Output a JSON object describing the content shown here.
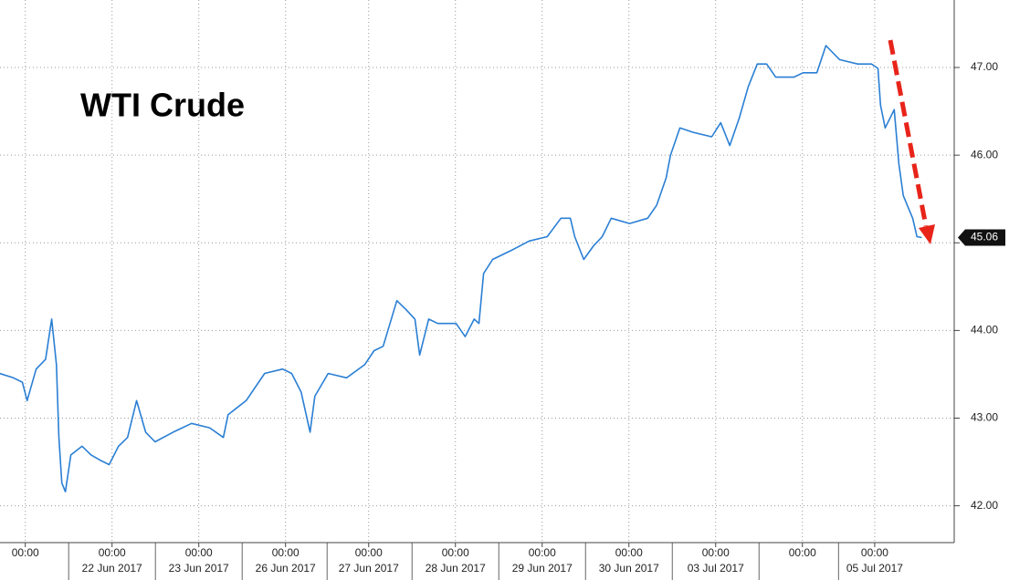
{
  "chart_data": {
    "type": "line",
    "title": "WTI Crude",
    "grid": true,
    "xlim": [
      -7,
      257
    ],
    "ylim": [
      41.58,
      47.77
    ],
    "yticks": [
      {
        "value": 42,
        "label": "42.00"
      },
      {
        "value": 43,
        "label": "43.00"
      },
      {
        "value": 44,
        "label": "44.00"
      },
      {
        "value": 45,
        "label": "45.00"
      },
      {
        "value": 46,
        "label": "46.00"
      },
      {
        "value": 47,
        "label": "47.00"
      }
    ],
    "xticks": [
      {
        "value": 0,
        "label": "00:00"
      },
      {
        "value": 24,
        "label": "00:00"
      },
      {
        "value": 48,
        "label": "00:00"
      },
      {
        "value": 72,
        "label": "00:00"
      },
      {
        "value": 95,
        "label": "00:00"
      },
      {
        "value": 119,
        "label": "00:00"
      },
      {
        "value": 143,
        "label": "00:00"
      },
      {
        "value": 167,
        "label": "00:00"
      },
      {
        "value": 191,
        "label": "00:00"
      },
      {
        "value": 215,
        "label": "00:00"
      },
      {
        "value": 235,
        "label": "00:00"
      }
    ],
    "xdates": [
      {
        "value": 24,
        "label": "22 Jun 2017"
      },
      {
        "value": 48,
        "label": "23 Jun 2017"
      },
      {
        "value": 72,
        "label": "26 Jun 2017"
      },
      {
        "value": 95,
        "label": "27 Jun 2017"
      },
      {
        "value": 119,
        "label": "28 Jun 2017"
      },
      {
        "value": 143,
        "label": "29 Jun 2017"
      },
      {
        "value": 167,
        "label": "30 Jun 2017"
      },
      {
        "value": 191,
        "label": "03 Jul 2017"
      },
      {
        "value": 235,
        "label": "05 Jul 2017"
      }
    ],
    "series": [
      {
        "color": "#2a7fd4",
        "x": [
          -7.1,
          -3.3,
          -0.8,
          0.5,
          3.0,
          5.6,
          7.3,
          8.6,
          9.3,
          10.1,
          11.1,
          12.6,
          15.7,
          18.2,
          20.7,
          23.2,
          25.8,
          28.3,
          30.8,
          33.3,
          35.9,
          40.9,
          46.0,
          51.0,
          54.8,
          56.1,
          61.1,
          66.2,
          71.2,
          73.7,
          76.3,
          78.8,
          80.1,
          83.8,
          88.9,
          93.9,
          96.5,
          99.0,
          102.8,
          105.3,
          107.8,
          109.1,
          111.6,
          114.1,
          119.2,
          121.7,
          124.2,
          125.5,
          126.8,
          129.3,
          134.3,
          139.4,
          144.4,
          148.2,
          150.8,
          152.0,
          154.5,
          157.1,
          159.6,
          162.1,
          167.2,
          172.2,
          174.7,
          177.3,
          178.5,
          181.1,
          184.8,
          189.9,
          192.4,
          194.9,
          197.5,
          200.0,
          202.5,
          205.1,
          207.6,
          212.6,
          215.2,
          219.0,
          221.5,
          225.3,
          230.3,
          234.1,
          235.9,
          236.6,
          237.9,
          240.4,
          241.7,
          242.9,
          245.5,
          246.7,
          248.0
        ],
        "values": [
          43.51,
          43.46,
          43.41,
          43.2,
          43.56,
          43.67,
          44.13,
          43.61,
          42.78,
          42.26,
          42.16,
          42.58,
          42.68,
          42.58,
          42.52,
          42.47,
          42.68,
          42.78,
          43.2,
          42.84,
          42.73,
          42.84,
          42.94,
          42.89,
          42.78,
          43.04,
          43.2,
          43.51,
          43.56,
          43.51,
          43.3,
          42.84,
          43.25,
          43.51,
          43.46,
          43.61,
          43.77,
          43.82,
          44.34,
          44.24,
          44.13,
          43.72,
          44.13,
          44.08,
          44.08,
          43.93,
          44.13,
          44.08,
          44.65,
          44.81,
          44.91,
          45.02,
          45.07,
          45.28,
          45.28,
          45.07,
          44.81,
          44.96,
          45.07,
          45.28,
          45.22,
          45.28,
          45.43,
          45.74,
          46.0,
          46.31,
          46.26,
          46.21,
          46.37,
          46.11,
          46.42,
          46.78,
          47.04,
          47.04,
          46.89,
          46.89,
          46.94,
          46.94,
          47.25,
          47.09,
          47.04,
          47.04,
          46.99,
          46.57,
          46.31,
          46.52,
          45.9,
          45.54,
          45.28,
          45.07,
          45.06
        ]
      }
    ]
  }
}
